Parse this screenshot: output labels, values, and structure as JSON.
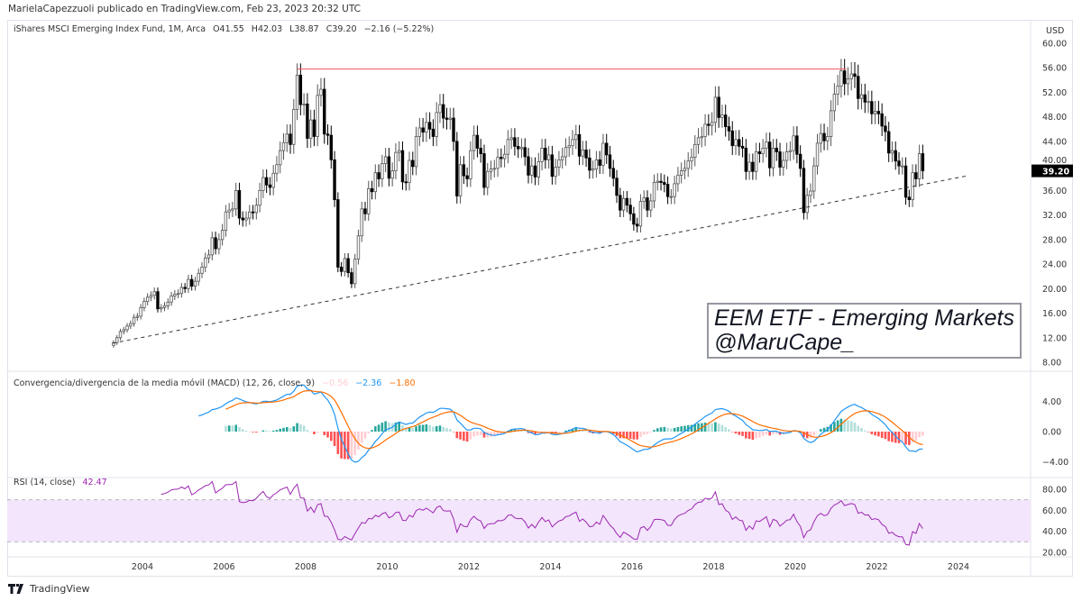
{
  "header": {
    "published": "MarielaCapezzuoli publicado en TradingView.com, Feb 23, 2023 20:32 UTC"
  },
  "legend": {
    "symbol": "iShares MSCI Emerging Index Fund, 1M, Arca",
    "open": "O41.55",
    "high": "H42.03",
    "low": "L38.87",
    "close": "C39.20",
    "change": "−2.16 (−5.22%)"
  },
  "macd_legend": {
    "title": "Convergencia/divergencia de la media móvil (MACD) (12, 26, close, 9)",
    "hist": "−0.56",
    "macd": "−2.36",
    "signal": "−1.80"
  },
  "rsi_legend": {
    "title": "RSI (14, close)",
    "value": "42.47"
  },
  "annotation": {
    "line1": "EEM ETF - Emerging Markets",
    "line2": "@MaruCape_"
  },
  "footer": {
    "brand": "TradingView",
    "logo_icon": "tradingview-logo-icon"
  },
  "colors": {
    "up_fill": "#ffffff",
    "up_border": "#555555",
    "down": "#000000",
    "resistance": "#f7525f",
    "macd": "#2196f3",
    "signal": "#ff6d00",
    "hist_up_strong": "#26a69a",
    "hist_up_weak": "#b2dfdb",
    "hist_down_strong": "#ff5252",
    "hist_down_weak": "#ffcdd2",
    "rsi": "#9c27b0",
    "rsi_band": "#f3e5fc",
    "last_price_bg": "#000000"
  },
  "chart_data": [
    {
      "type": "candlestick",
      "name": "price",
      "currency": "USD",
      "interval": "1M",
      "start": "2003-04",
      "last_price": "39.20",
      "ylim": [
        8,
        60
      ],
      "yticks": [
        "60.00",
        "56.00",
        "52.00",
        "48.00",
        "44.00",
        "40.00",
        "36.00",
        "32.00",
        "28.00",
        "24.00",
        "20.00",
        "16.00",
        "12.00",
        "8.00"
      ],
      "closes": [
        11.2,
        12.0,
        13.0,
        13.3,
        13.9,
        14.3,
        15.3,
        15.5,
        16.9,
        17.9,
        18.6,
        18.9,
        19.5,
        16.7,
        16.9,
        17.2,
        17.8,
        18.8,
        19.1,
        19.2,
        20.2,
        20.0,
        21.5,
        20.4,
        21.2,
        22.5,
        23.5,
        25.0,
        25.5,
        28.3,
        26.5,
        28.0,
        29.5,
        32.5,
        32.8,
        33.0,
        36.0,
        31.5,
        31.2,
        31.5,
        32.5,
        32.4,
        33.6,
        36.0,
        38.1,
        36.9,
        36.5,
        38.8,
        40.2,
        42.5,
        43.8,
        45.2,
        43.5,
        49.2,
        54.8,
        50.0,
        50.1,
        44.5,
        47.5,
        44.8,
        51.5,
        52.5,
        45.2,
        45.0,
        41.0,
        34.5,
        23.5,
        22.8,
        24.9,
        22.6,
        20.8,
        24.8,
        28.6,
        33.0,
        32.2,
        36.3,
        35.8,
        38.9,
        37.9,
        40.4,
        41.5,
        38.0,
        39.2,
        42.2,
        42.5,
        37.4,
        37.3,
        40.9,
        39.9,
        44.8,
        46.2,
        45.5,
        47.1,
        46.0,
        44.8,
        48.7,
        50.0,
        47.8,
        47.6,
        47.8,
        44.0,
        35.1,
        40.2,
        38.4,
        37.9,
        42.5,
        45.0,
        42.9,
        42.0,
        36.5,
        39.1,
        39.5,
        39.6,
        41.4,
        41.2,
        41.9,
        44.3,
        44.6,
        43.2,
        42.8,
        43.0,
        41.5,
        38.5,
        40.0,
        38.2,
        40.7,
        42.9,
        41.0,
        41.8,
        38.3,
        39.8,
        41.0,
        41.5,
        43.0,
        43.3,
        44.3,
        45.1,
        41.6,
        42.6,
        41.3,
        39.3,
        39.5,
        41.0,
        40.1,
        43.7,
        41.8,
        39.6,
        38.0,
        35.2,
        32.8,
        34.7,
        33.6,
        32.2,
        30.5,
        30.2,
        34.2,
        34.8,
        32.8,
        34.3,
        37.3,
        37.5,
        37.3,
        37.0,
        35.0,
        35.0,
        37.1,
        38.5,
        39.2,
        39.6,
        40.8,
        41.4,
        43.5,
        44.6,
        44.8,
        46.8,
        46.6,
        47.1,
        51.2,
        47.9,
        48.3,
        46.4,
        45.7,
        43.3,
        44.3,
        43.2,
        42.9,
        39.1,
        40.6,
        39.1,
        42.3,
        42.0,
        42.9,
        43.9,
        39.7,
        42.9,
        42.3,
        39.8,
        40.9,
        42.3,
        42.5,
        44.9,
        41.9,
        39.6,
        32.4,
        35.2,
        35.9,
        40.0,
        43.7,
        45.3,
        44.1,
        44.8,
        49.0,
        51.7,
        53.0,
        55.5,
        53.4,
        54.2,
        55.0,
        54.6,
        51.0,
        51.6,
        50.4,
        50.5,
        48.5,
        48.9,
        48.5,
        46.5,
        45.6,
        42.1,
        42.5,
        40.8,
        40.0,
        40.0,
        34.9,
        34.5,
        38.9,
        37.9,
        42.0,
        39.2
      ],
      "drawings": {
        "resistance": {
          "price": 55.8,
          "from": 2007.8,
          "to": 2021.25
        },
        "support_trendline": {
          "from": [
            2003.27,
            11.1
          ],
          "to": [
            2024.22,
            38.4
          ],
          "style": "dashed"
        }
      }
    },
    {
      "type": "line",
      "name": "MACD",
      "yticks": [
        "4.00",
        "0.00",
        "−4.00"
      ],
      "ylim": [
        -5,
        5.5
      ]
    },
    {
      "type": "line",
      "name": "RSI",
      "yticks": [
        "80.00",
        "60.00",
        "40.00",
        "20.00"
      ],
      "ylim": [
        20,
        85
      ],
      "bands": [
        30,
        70
      ]
    },
    {
      "type": "axis",
      "xticks": [
        "2004",
        "2006",
        "2008",
        "2010",
        "2012",
        "2014",
        "2016",
        "2018",
        "2020",
        "2022",
        "2024"
      ]
    }
  ]
}
